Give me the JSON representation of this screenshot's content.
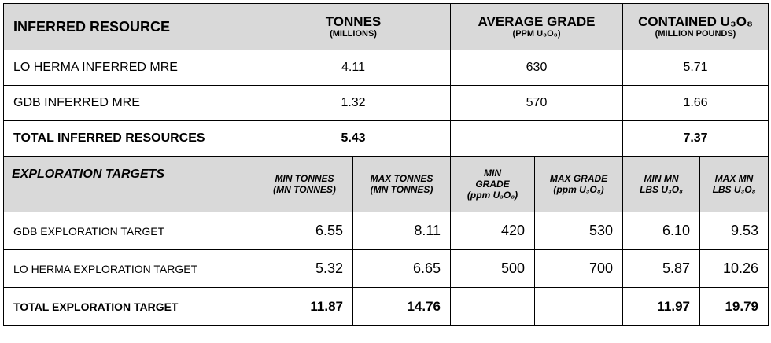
{
  "inferred_header": {
    "label": "INFERRED RESOURCE",
    "tonnes_main": "TONNES",
    "tonnes_sub": "(MILLIONS)",
    "grade_main": "AVERAGE GRADE",
    "grade_sub": "(PPM U₃O₈)",
    "contained_main": "CONTAINED U₃O₈",
    "contained_sub": "(MILLION POUNDS)"
  },
  "inferred_rows": [
    {
      "label": "LO HERMA INFERRED MRE",
      "tonnes": "4.11",
      "grade": "630",
      "contained": "5.71"
    },
    {
      "label": "GDB INFERRED MRE",
      "tonnes": "1.32",
      "grade": "570",
      "contained": "1.66"
    },
    {
      "label": "TOTAL INFERRED RESOURCES",
      "tonnes": "5.43",
      "grade": "",
      "contained": "7.37"
    }
  ],
  "exploration_header": {
    "label": "EXPLORATION TARGETS",
    "min_tonnes": [
      "MIN TONNES",
      "(MN TONNES)"
    ],
    "max_tonnes": [
      "MAX TONNES",
      "(MN TONNES)"
    ],
    "min_grade": [
      "MIN",
      "GRADE",
      "(ppm U₃O₈)"
    ],
    "max_grade": [
      "MAX GRADE",
      "(ppm U₃O₈)"
    ],
    "min_lbs": [
      "MIN MN",
      "LBS U₃O₈"
    ],
    "max_lbs": [
      "MAX MN",
      "LBS U₃O₈"
    ]
  },
  "exploration_rows": [
    {
      "label": "GDB EXPLORATION TARGET",
      "min_tonnes": "6.55",
      "max_tonnes": "8.11",
      "min_grade": "420",
      "max_grade": "530",
      "min_lbs": "6.10",
      "max_lbs": "9.53"
    },
    {
      "label": "LO HERMA EXPLORATION TARGET",
      "min_tonnes": "5.32",
      "max_tonnes": "6.65",
      "min_grade": "500",
      "max_grade": "700",
      "min_lbs": "5.87",
      "max_lbs": "10.26"
    },
    {
      "label": "TOTAL EXPLORATION TARGET",
      "min_tonnes": "11.87",
      "max_tonnes": "14.76",
      "min_grade": "",
      "max_grade": "",
      "min_lbs": "11.97",
      "max_lbs": "19.79"
    }
  ],
  "colors": {
    "header_bg": "#d9d9d9",
    "border": "#000000"
  }
}
